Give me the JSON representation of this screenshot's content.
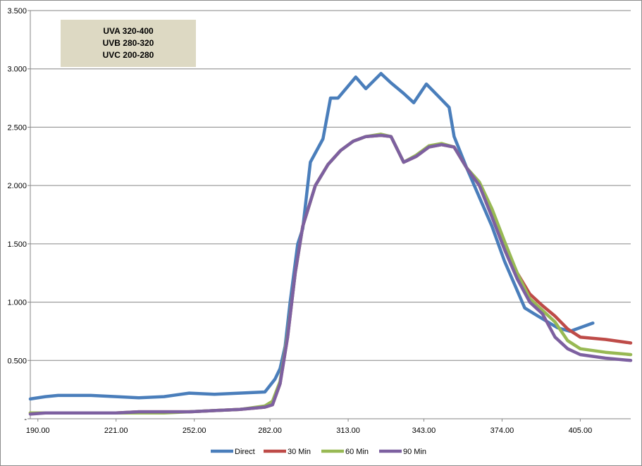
{
  "chart_data": {
    "type": "line",
    "title": "",
    "xlabel": "",
    "ylabel": "",
    "xlim": [
      187,
      425
    ],
    "ylim": [
      0,
      3.5
    ],
    "x_ticks": [
      190,
      221,
      252,
      282,
      313,
      343,
      374,
      405
    ],
    "x_tick_labels": [
      "190.00",
      "221.00",
      "252.00",
      "282.00",
      "313.00",
      "343.00",
      "374.00",
      "405.00"
    ],
    "y_ticks": [
      0,
      0.5,
      1.0,
      1.5,
      2.0,
      2.5,
      3.0,
      3.5
    ],
    "y_tick_labels": [
      "-",
      "0.500",
      "1.000",
      "1.500",
      "2.000",
      "2.500",
      "3.000",
      "3.500"
    ],
    "grid": "horizontal",
    "legend_position": "bottom",
    "annotation": [
      "UVA 320-400",
      "UVB 280-320",
      "UVC 200-280"
    ],
    "series": [
      {
        "name": "Direct",
        "color": "#4a7ebb",
        "points": [
          [
            187,
            0.17
          ],
          [
            193,
            0.19
          ],
          [
            198,
            0.2
          ],
          [
            205,
            0.2
          ],
          [
            211,
            0.2
          ],
          [
            221,
            0.19
          ],
          [
            230,
            0.18
          ],
          [
            240,
            0.19
          ],
          [
            250,
            0.22
          ],
          [
            260,
            0.21
          ],
          [
            270,
            0.22
          ],
          [
            280,
            0.23
          ],
          [
            284,
            0.34
          ],
          [
            286,
            0.43
          ],
          [
            288,
            0.62
          ],
          [
            290,
            1.0
          ],
          [
            293,
            1.5
          ],
          [
            295,
            1.63
          ],
          [
            298,
            2.2
          ],
          [
            303,
            2.4
          ],
          [
            306,
            2.75
          ],
          [
            309,
            2.75
          ],
          [
            316,
            2.93
          ],
          [
            320,
            2.83
          ],
          [
            326,
            2.96
          ],
          [
            330,
            2.88
          ],
          [
            335,
            2.79
          ],
          [
            339,
            2.71
          ],
          [
            344,
            2.87
          ],
          [
            349,
            2.76
          ],
          [
            353,
            2.67
          ],
          [
            355,
            2.42
          ],
          [
            360,
            2.15
          ],
          [
            365,
            1.9
          ],
          [
            370,
            1.65
          ],
          [
            375,
            1.35
          ],
          [
            383,
            0.95
          ],
          [
            386,
            0.91
          ],
          [
            396,
            0.78
          ],
          [
            401,
            0.75
          ],
          [
            410,
            0.82
          ]
        ]
      },
      {
        "name": "30 Min",
        "color": "#be4b48",
        "points": [
          [
            187,
            0.05
          ],
          [
            193,
            0.05
          ],
          [
            198,
            0.05
          ],
          [
            210,
            0.05
          ],
          [
            221,
            0.05
          ],
          [
            230,
            0.06
          ],
          [
            240,
            0.06
          ],
          [
            250,
            0.06
          ],
          [
            260,
            0.07
          ],
          [
            270,
            0.08
          ],
          [
            280,
            0.1
          ],
          [
            283,
            0.12
          ],
          [
            286,
            0.3
          ],
          [
            289,
            0.7
          ],
          [
            292,
            1.25
          ],
          [
            295,
            1.65
          ],
          [
            300,
            2.0
          ],
          [
            305,
            2.18
          ],
          [
            310,
            2.3
          ],
          [
            315,
            2.38
          ],
          [
            320,
            2.42
          ],
          [
            326,
            2.43
          ],
          [
            330,
            2.42
          ],
          [
            335,
            2.2
          ],
          [
            340,
            2.25
          ],
          [
            345,
            2.33
          ],
          [
            350,
            2.35
          ],
          [
            355,
            2.33
          ],
          [
            360,
            2.15
          ],
          [
            365,
            2.0
          ],
          [
            370,
            1.75
          ],
          [
            375,
            1.5
          ],
          [
            380,
            1.25
          ],
          [
            385,
            1.07
          ],
          [
            390,
            0.97
          ],
          [
            395,
            0.88
          ],
          [
            400,
            0.77
          ],
          [
            405,
            0.7
          ],
          [
            415,
            0.68
          ],
          [
            425,
            0.65
          ]
        ]
      },
      {
        "name": "60 Min",
        "color": "#98b954",
        "points": [
          [
            187,
            0.05
          ],
          [
            193,
            0.05
          ],
          [
            198,
            0.05
          ],
          [
            210,
            0.05
          ],
          [
            221,
            0.05
          ],
          [
            230,
            0.05
          ],
          [
            240,
            0.05
          ],
          [
            250,
            0.06
          ],
          [
            260,
            0.07
          ],
          [
            270,
            0.08
          ],
          [
            280,
            0.11
          ],
          [
            283,
            0.15
          ],
          [
            286,
            0.32
          ],
          [
            289,
            0.72
          ],
          [
            292,
            1.25
          ],
          [
            295,
            1.65
          ],
          [
            300,
            2.0
          ],
          [
            305,
            2.18
          ],
          [
            310,
            2.3
          ],
          [
            315,
            2.38
          ],
          [
            320,
            2.42
          ],
          [
            326,
            2.44
          ],
          [
            330,
            2.42
          ],
          [
            335,
            2.2
          ],
          [
            340,
            2.26
          ],
          [
            345,
            2.34
          ],
          [
            350,
            2.36
          ],
          [
            355,
            2.33
          ],
          [
            360,
            2.15
          ],
          [
            365,
            2.03
          ],
          [
            370,
            1.8
          ],
          [
            375,
            1.52
          ],
          [
            380,
            1.25
          ],
          [
            385,
            1.03
          ],
          [
            390,
            0.93
          ],
          [
            395,
            0.83
          ],
          [
            400,
            0.67
          ],
          [
            405,
            0.6
          ],
          [
            415,
            0.57
          ],
          [
            425,
            0.55
          ]
        ]
      },
      {
        "name": "90 Min",
        "color": "#7d60a0",
        "points": [
          [
            187,
            0.04
          ],
          [
            193,
            0.05
          ],
          [
            198,
            0.05
          ],
          [
            210,
            0.05
          ],
          [
            221,
            0.05
          ],
          [
            230,
            0.06
          ],
          [
            240,
            0.06
          ],
          [
            250,
            0.06
          ],
          [
            260,
            0.07
          ],
          [
            270,
            0.08
          ],
          [
            280,
            0.1
          ],
          [
            283,
            0.12
          ],
          [
            286,
            0.3
          ],
          [
            289,
            0.7
          ],
          [
            292,
            1.25
          ],
          [
            295,
            1.65
          ],
          [
            300,
            2.0
          ],
          [
            305,
            2.18
          ],
          [
            310,
            2.3
          ],
          [
            315,
            2.38
          ],
          [
            320,
            2.42
          ],
          [
            326,
            2.43
          ],
          [
            330,
            2.42
          ],
          [
            335,
            2.2
          ],
          [
            340,
            2.25
          ],
          [
            345,
            2.33
          ],
          [
            350,
            2.35
          ],
          [
            355,
            2.33
          ],
          [
            360,
            2.15
          ],
          [
            365,
            2.0
          ],
          [
            370,
            1.73
          ],
          [
            375,
            1.45
          ],
          [
            380,
            1.2
          ],
          [
            385,
            1.0
          ],
          [
            390,
            0.9
          ],
          [
            395,
            0.7
          ],
          [
            400,
            0.6
          ],
          [
            405,
            0.55
          ],
          [
            415,
            0.52
          ],
          [
            425,
            0.5
          ]
        ]
      }
    ]
  }
}
